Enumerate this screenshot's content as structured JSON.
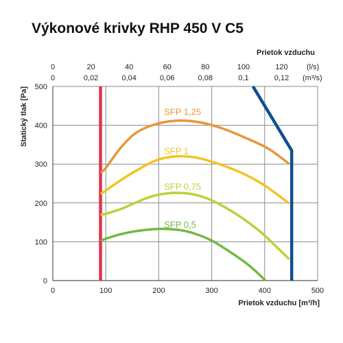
{
  "chart_data": {
    "type": "line",
    "title": "Výkonové krivky RHP 450 V C5",
    "xlabel": "Prietok vzduchu [m³/h]",
    "ylabel": "Statický tlak [Pa]",
    "top_axis_title": "Prietok vzduchu",
    "top_axis_ls_unit": "(l/s)",
    "top_axis_m3s_unit": "(m³/s)",
    "xlim": [
      0,
      500
    ],
    "ylim": [
      0,
      500
    ],
    "x_ticks": [
      "0",
      "100",
      "200",
      "300",
      "400",
      "500"
    ],
    "y_ticks": [
      "0",
      "100",
      "200",
      "300",
      "400",
      "500"
    ],
    "top_ls_ticks": [
      {
        "x": 0,
        "label": "0"
      },
      {
        "x": 72,
        "label": "20"
      },
      {
        "x": 144,
        "label": "40"
      },
      {
        "x": 216,
        "label": "60"
      },
      {
        "x": 288,
        "label": "80"
      },
      {
        "x": 360,
        "label": "100"
      },
      {
        "x": 432,
        "label": "120"
      }
    ],
    "top_m3s_ticks": [
      {
        "x": 0,
        "label": "0"
      },
      {
        "x": 72,
        "label": "0,02"
      },
      {
        "x": 144,
        "label": "0,04"
      },
      {
        "x": 216,
        "label": "0,06"
      },
      {
        "x": 288,
        "label": "0,08"
      },
      {
        "x": 360,
        "label": "0,1"
      },
      {
        "x": 432,
        "label": "0,12"
      }
    ],
    "grid": true,
    "series": [
      {
        "name": "SFP 1,25",
        "color": "#e8963a",
        "points": [
          [
            92,
            280
          ],
          [
            100,
            290
          ],
          [
            130,
            345
          ],
          [
            160,
            383
          ],
          [
            200,
            405
          ],
          [
            240,
            412
          ],
          [
            280,
            407
          ],
          [
            320,
            392
          ],
          [
            360,
            370
          ],
          [
            400,
            345
          ],
          [
            420,
            328
          ],
          [
            445,
            302
          ]
        ]
      },
      {
        "name": "SFP 1",
        "color": "#f2c41f",
        "points": [
          [
            92,
            225
          ],
          [
            100,
            232
          ],
          [
            130,
            260
          ],
          [
            160,
            285
          ],
          [
            190,
            307
          ],
          [
            220,
            318
          ],
          [
            250,
            320
          ],
          [
            280,
            314
          ],
          [
            320,
            297
          ],
          [
            360,
            275
          ],
          [
            400,
            245
          ],
          [
            445,
            200
          ]
        ]
      },
      {
        "name": "SFP 0,75",
        "color": "#b9d23a",
        "points": [
          [
            92,
            170
          ],
          [
            100,
            172
          ],
          [
            130,
            185
          ],
          [
            160,
            203
          ],
          [
            190,
            218
          ],
          [
            220,
            225
          ],
          [
            250,
            225
          ],
          [
            280,
            217
          ],
          [
            310,
            200
          ],
          [
            350,
            168
          ],
          [
            390,
            128
          ],
          [
            420,
            90
          ],
          [
            445,
            57
          ]
        ]
      },
      {
        "name": "SFP 0,5",
        "color": "#72b843",
        "points": [
          [
            92,
            103
          ],
          [
            100,
            108
          ],
          [
            130,
            120
          ],
          [
            160,
            128
          ],
          [
            200,
            133
          ],
          [
            240,
            130
          ],
          [
            270,
            120
          ],
          [
            300,
            103
          ],
          [
            330,
            78
          ],
          [
            360,
            50
          ],
          [
            380,
            28
          ],
          [
            400,
            2
          ]
        ]
      }
    ],
    "limit_lines": [
      {
        "color": "#e0344e",
        "points": [
          [
            90,
            500
          ],
          [
            90,
            0
          ]
        ]
      },
      {
        "color": "#0f4f8e",
        "points": [
          [
            378,
            500
          ],
          [
            451,
            335
          ],
          [
            451,
            0
          ]
        ]
      }
    ],
    "annotations": [
      {
        "text": "SFP 1,25",
        "x": 210,
        "y": 427,
        "color": "#e8963a"
      },
      {
        "text": "SFP 1",
        "x": 210,
        "y": 326,
        "color": "#f2c41f"
      },
      {
        "text": "SFP 0,75",
        "x": 210,
        "y": 234,
        "color": "#b9d23a"
      },
      {
        "text": "SFP 0,5",
        "x": 210,
        "y": 136,
        "color": "#72b843"
      }
    ]
  }
}
